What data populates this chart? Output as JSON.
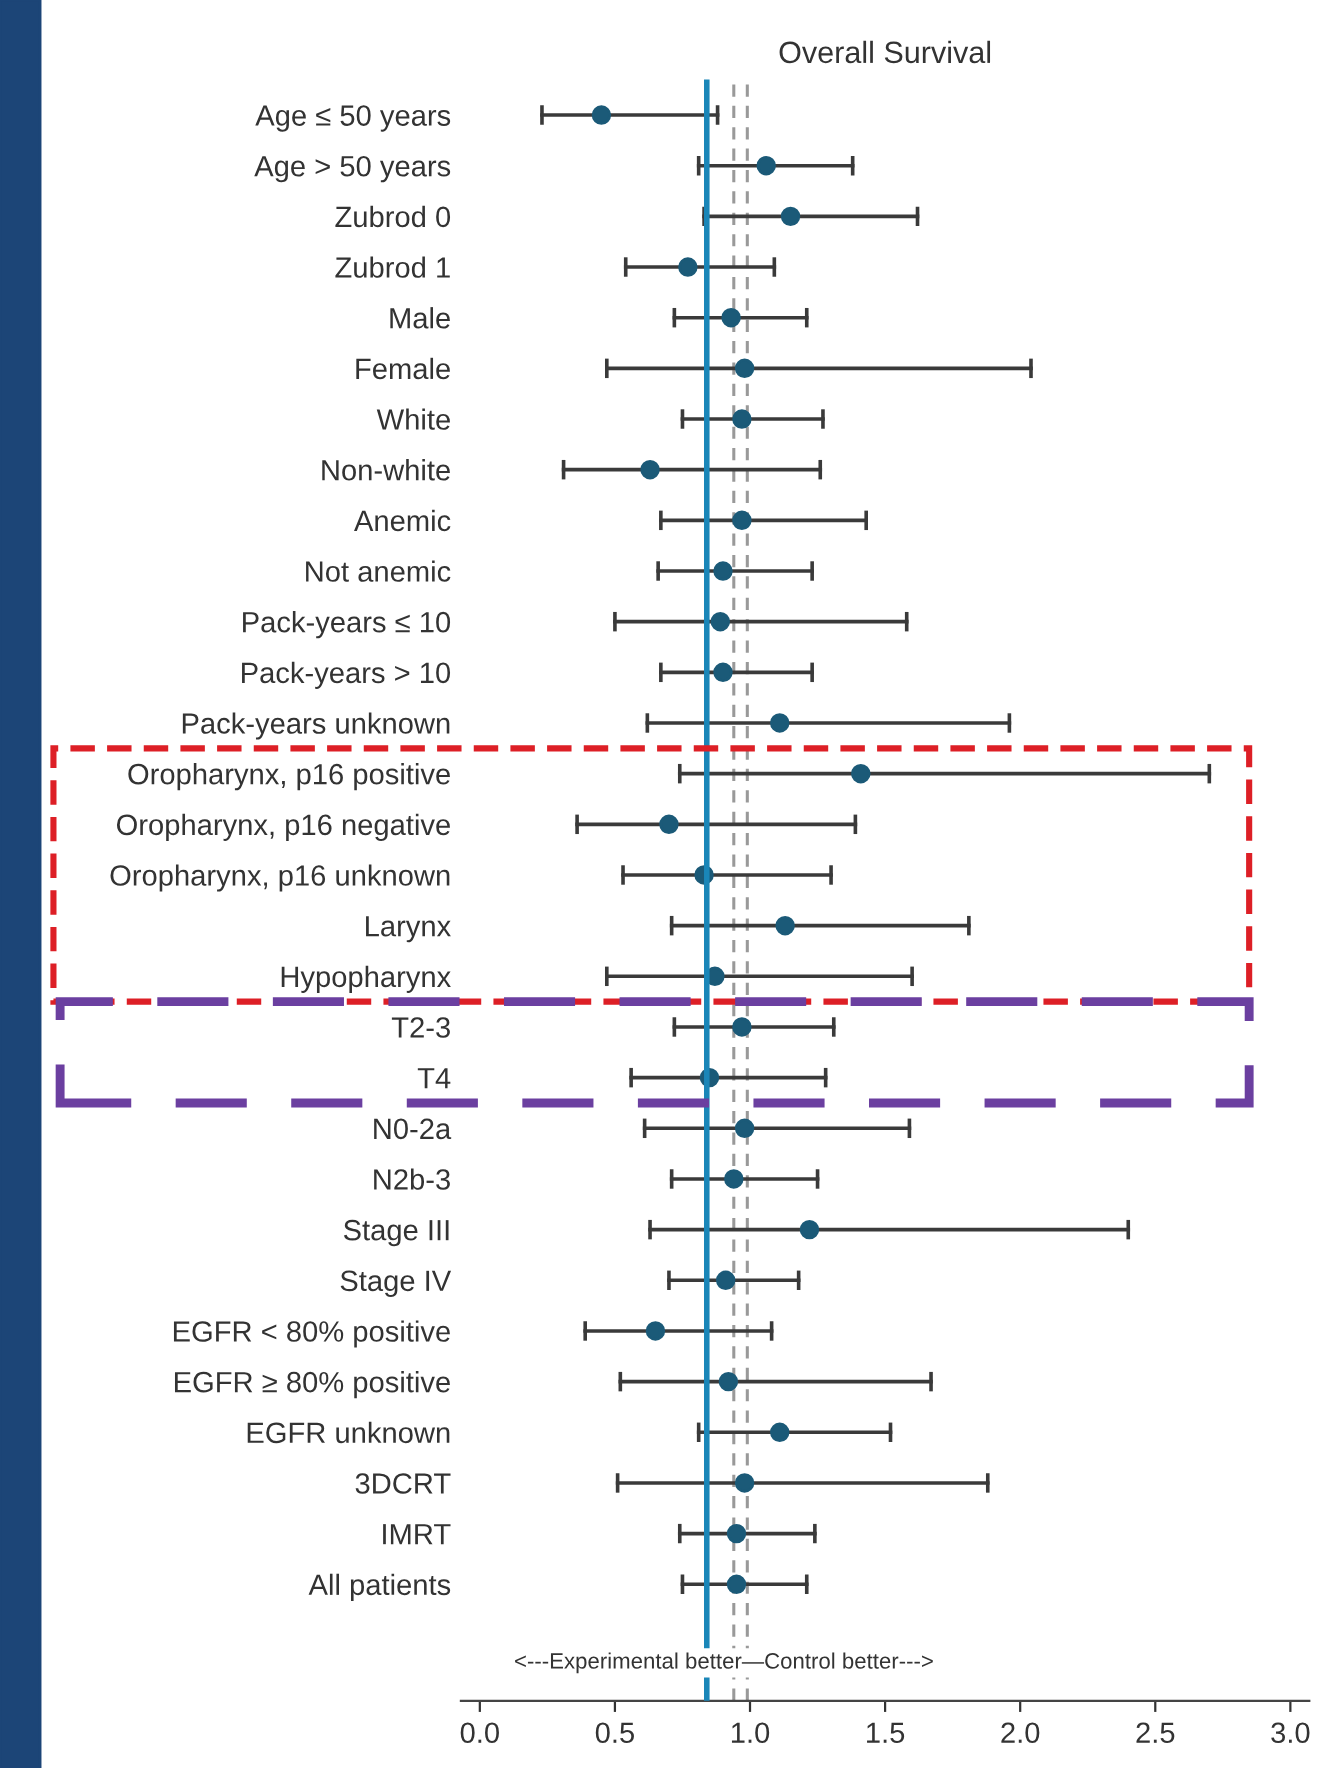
{
  "chart_data": {
    "type": "scatter",
    "orientation": "horizontal",
    "title": "Overall Survival",
    "categories": [
      "Age ≤ 50 years",
      "Age > 50 years",
      "Zubrod 0",
      "Zubrod 1",
      "Male",
      "Female",
      "White",
      "Non-white",
      "Anemic",
      "Not anemic",
      "Pack-years ≤ 10",
      "Pack-years > 10",
      "Pack-years unknown",
      "Oropharynx, p16 positive",
      "Oropharynx, p16 negative",
      "Oropharynx, p16 unknown",
      "Larynx",
      "Hypopharynx",
      "T2-3",
      "T4",
      "N0-2a",
      "N2b-3",
      "Stage III",
      "Stage IV",
      "EGFR < 80% positive",
      "EGFR ≥ 80% positive",
      "EGFR unknown",
      "3DCRT",
      "IMRT",
      "All patients"
    ],
    "values": [
      0.45,
      1.06,
      1.15,
      0.77,
      0.93,
      0.98,
      0.97,
      0.63,
      0.97,
      0.9,
      0.89,
      0.9,
      1.11,
      1.41,
      0.7,
      0.83,
      1.13,
      0.87,
      0.97,
      0.85,
      0.98,
      0.94,
      1.22,
      0.91,
      0.65,
      0.92,
      1.11,
      0.98,
      0.95,
      0.95
    ],
    "errors": [
      [
        0.23,
        0.88
      ],
      [
        0.81,
        1.38
      ],
      [
        0.83,
        1.62
      ],
      [
        0.54,
        1.09
      ],
      [
        0.72,
        1.21
      ],
      [
        0.47,
        2.04
      ],
      [
        0.75,
        1.27
      ],
      [
        0.31,
        1.26
      ],
      [
        0.67,
        1.43
      ],
      [
        0.66,
        1.23
      ],
      [
        0.5,
        1.58
      ],
      [
        0.67,
        1.23
      ],
      [
        0.62,
        1.96
      ],
      [
        0.74,
        2.7
      ],
      [
        0.36,
        1.39
      ],
      [
        0.53,
        1.3
      ],
      [
        0.71,
        1.81
      ],
      [
        0.47,
        1.6
      ],
      [
        0.72,
        1.31
      ],
      [
        0.56,
        1.28
      ],
      [
        0.61,
        1.59
      ],
      [
        0.71,
        1.25
      ],
      [
        0.63,
        2.4
      ],
      [
        0.7,
        1.18
      ],
      [
        0.39,
        1.08
      ],
      [
        0.52,
        1.67
      ],
      [
        0.81,
        1.52
      ],
      [
        0.51,
        1.88
      ],
      [
        0.74,
        1.24
      ],
      [
        0.75,
        1.21
      ]
    ],
    "color": "#1b5a78",
    "marker": "circle",
    "xlim": [
      -0.07,
      3.07
    ],
    "xticks": [
      {
        "value": 0,
        "label": "0.0"
      },
      {
        "value": 0.5,
        "label": "0.5"
      },
      {
        "value": 1,
        "label": "1.0"
      },
      {
        "value": 1.5,
        "label": "1.5"
      },
      {
        "value": 2,
        "label": "2.0"
      },
      {
        "value": 2.5,
        "label": "2.5"
      },
      {
        "value": 3,
        "label": "3.0"
      }
    ],
    "ref_lines": [
      {
        "axis": "x",
        "value": 0.84,
        "color": "#1a86b8",
        "line_style": "solid"
      },
      {
        "axis": "x",
        "value": 0.94,
        "color": "#999999",
        "line_style": "dashed"
      },
      {
        "axis": "x",
        "value": 0.99,
        "color": "#999999",
        "line_style": "dashed"
      }
    ],
    "annotations": [
      "<---Experimental better—Control better--->"
    ],
    "grid": false,
    "legend": false
  }
}
